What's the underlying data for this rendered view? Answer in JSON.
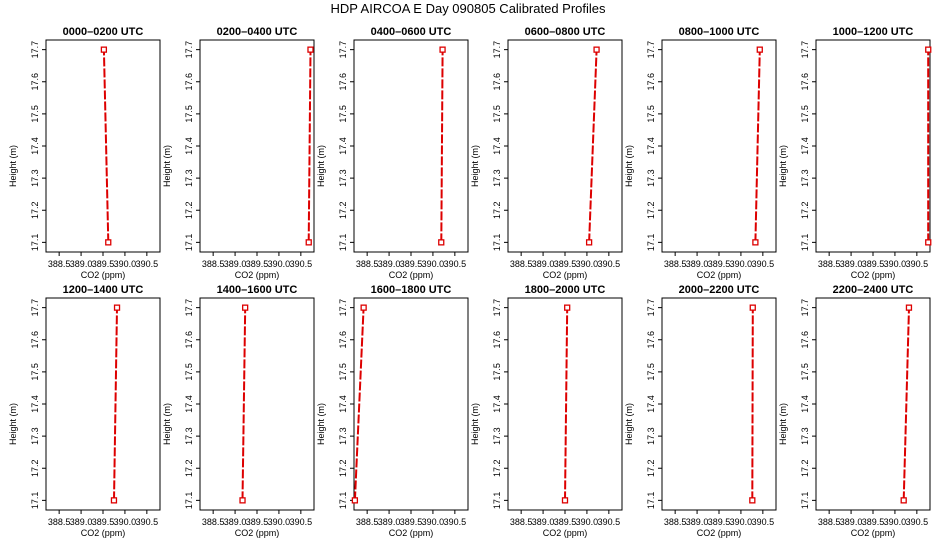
{
  "title": "HDP AIRCOA E  Day 090805  Calibrated Profiles",
  "chart_data": [
    {
      "type": "line",
      "title": "0000–0200 UTC",
      "xlabel": "CO2 (ppm)",
      "ylabel": "Height (m)",
      "xlim": [
        388.2,
        390.8
      ],
      "ylim": [
        17.07,
        17.73
      ],
      "x_ticks": [
        "388.5",
        "389.0",
        "389.5",
        "390.0",
        "390.5"
      ],
      "y_ticks": [
        "17.1",
        "17.2",
        "17.3",
        "17.4",
        "17.5",
        "17.6",
        "17.7"
      ],
      "series": [
        {
          "x": [
            389.62,
            389.52
          ],
          "y": [
            17.1,
            17.7
          ]
        }
      ]
    },
    {
      "type": "line",
      "title": "0200–0400 UTC",
      "xlabel": "CO2 (ppm)",
      "ylabel": "Height (m)",
      "xlim": [
        388.2,
        390.8
      ],
      "ylim": [
        17.07,
        17.73
      ],
      "x_ticks": [
        "388.5",
        "389.0",
        "389.5",
        "390.0",
        "390.5"
      ],
      "y_ticks": [
        "17.1",
        "17.2",
        "17.3",
        "17.4",
        "17.5",
        "17.6",
        "17.7"
      ],
      "series": [
        {
          "x": [
            390.68,
            390.72
          ],
          "y": [
            17.1,
            17.7
          ]
        }
      ]
    },
    {
      "type": "line",
      "title": "0400–0600 UTC",
      "xlabel": "CO2 (ppm)",
      "ylabel": "Height (m)",
      "xlim": [
        388.2,
        390.8
      ],
      "ylim": [
        17.07,
        17.73
      ],
      "x_ticks": [
        "388.5",
        "389.0",
        "389.5",
        "390.0",
        "390.5"
      ],
      "y_ticks": [
        "17.1",
        "17.2",
        "17.3",
        "17.4",
        "17.5",
        "17.6",
        "17.7"
      ],
      "series": [
        {
          "x": [
            390.19,
            390.22
          ],
          "y": [
            17.1,
            17.7
          ]
        }
      ]
    },
    {
      "type": "line",
      "title": "0600–0800 UTC",
      "xlabel": "CO2 (ppm)",
      "ylabel": "Height (m)",
      "xlim": [
        388.2,
        390.8
      ],
      "ylim": [
        17.07,
        17.73
      ],
      "x_ticks": [
        "388.5",
        "389.0",
        "389.5",
        "390.0",
        "390.5"
      ],
      "y_ticks": [
        "17.1",
        "17.2",
        "17.3",
        "17.4",
        "17.5",
        "17.6",
        "17.7"
      ],
      "series": [
        {
          "x": [
            390.05,
            390.22
          ],
          "y": [
            17.1,
            17.7
          ]
        }
      ]
    },
    {
      "type": "line",
      "title": "0800–1000 UTC",
      "xlabel": "CO2 (ppm)",
      "ylabel": "Height (m)",
      "xlim": [
        388.2,
        390.8
      ],
      "ylim": [
        17.07,
        17.73
      ],
      "x_ticks": [
        "388.5",
        "389.0",
        "389.5",
        "390.0",
        "390.5"
      ],
      "y_ticks": [
        "17.1",
        "17.2",
        "17.3",
        "17.4",
        "17.5",
        "17.6",
        "17.7"
      ],
      "series": [
        {
          "x": [
            390.33,
            390.43
          ],
          "y": [
            17.1,
            17.7
          ]
        }
      ]
    },
    {
      "type": "line",
      "title": "1000–1200 UTC",
      "xlabel": "CO2 (ppm)",
      "ylabel": "Height (m)",
      "xlim": [
        388.2,
        390.8
      ],
      "ylim": [
        17.07,
        17.73
      ],
      "x_ticks": [
        "388.5",
        "389.0",
        "389.5",
        "390.0",
        "390.5"
      ],
      "y_ticks": [
        "17.1",
        "17.2",
        "17.3",
        "17.4",
        "17.5",
        "17.6",
        "17.7"
      ],
      "series": [
        {
          "x": [
            390.76,
            390.76
          ],
          "y": [
            17.1,
            17.7
          ]
        }
      ]
    },
    {
      "type": "line",
      "title": "1200–1400 UTC",
      "xlabel": "CO2 (ppm)",
      "ylabel": "Height (m)",
      "xlim": [
        388.2,
        390.8
      ],
      "ylim": [
        17.07,
        17.73
      ],
      "x_ticks": [
        "388.5",
        "389.0",
        "389.5",
        "390.0",
        "390.5"
      ],
      "y_ticks": [
        "17.1",
        "17.2",
        "17.3",
        "17.4",
        "17.5",
        "17.6",
        "17.7"
      ],
      "series": [
        {
          "x": [
            389.75,
            389.82
          ],
          "y": [
            17.1,
            17.7
          ]
        }
      ]
    },
    {
      "type": "line",
      "title": "1400–1600 UTC",
      "xlabel": "CO2 (ppm)",
      "ylabel": "Height (m)",
      "xlim": [
        388.2,
        390.8
      ],
      "ylim": [
        17.07,
        17.73
      ],
      "x_ticks": [
        "388.5",
        "389.0",
        "389.5",
        "390.0",
        "390.5"
      ],
      "y_ticks": [
        "17.1",
        "17.2",
        "17.3",
        "17.4",
        "17.5",
        "17.6",
        "17.7"
      ],
      "series": [
        {
          "x": [
            389.17,
            389.23
          ],
          "y": [
            17.1,
            17.7
          ]
        }
      ]
    },
    {
      "type": "line",
      "title": "1600–1800 UTC",
      "xlabel": "CO2 (ppm)",
      "ylabel": "Height (m)",
      "xlim": [
        388.2,
        390.8
      ],
      "ylim": [
        17.07,
        17.73
      ],
      "x_ticks": [
        "388.5",
        "389.0",
        "389.5",
        "390.0",
        "390.5"
      ],
      "y_ticks": [
        "17.1",
        "17.2",
        "17.3",
        "17.4",
        "17.5",
        "17.6",
        "17.7"
      ],
      "series": [
        {
          "x": [
            388.22,
            388.42
          ],
          "y": [
            17.1,
            17.7
          ]
        }
      ]
    },
    {
      "type": "line",
      "title": "1800–2000 UTC",
      "xlabel": "CO2 (ppm)",
      "ylabel": "Height (m)",
      "xlim": [
        388.2,
        390.8
      ],
      "ylim": [
        17.07,
        17.73
      ],
      "x_ticks": [
        "388.5",
        "389.0",
        "389.5",
        "390.0",
        "390.5"
      ],
      "y_ticks": [
        "17.1",
        "17.2",
        "17.3",
        "17.4",
        "17.5",
        "17.6",
        "17.7"
      ],
      "series": [
        {
          "x": [
            389.5,
            389.55
          ],
          "y": [
            17.1,
            17.7
          ]
        }
      ]
    },
    {
      "type": "line",
      "title": "2000–2200 UTC",
      "xlabel": "CO2 (ppm)",
      "ylabel": "Height (m)",
      "xlim": [
        388.2,
        390.8
      ],
      "ylim": [
        17.07,
        17.73
      ],
      "x_ticks": [
        "388.5",
        "389.0",
        "389.5",
        "390.0",
        "390.5"
      ],
      "y_ticks": [
        "17.1",
        "17.2",
        "17.3",
        "17.4",
        "17.5",
        "17.6",
        "17.7"
      ],
      "series": [
        {
          "x": [
            390.26,
            390.27
          ],
          "y": [
            17.1,
            17.7
          ]
        }
      ]
    },
    {
      "type": "line",
      "title": "2200–2400 UTC",
      "xlabel": "CO2 (ppm)",
      "ylabel": "Height (m)",
      "xlim": [
        388.2,
        390.8
      ],
      "ylim": [
        17.07,
        17.73
      ],
      "x_ticks": [
        "388.5",
        "389.0",
        "389.5",
        "390.0",
        "390.5"
      ],
      "y_ticks": [
        "17.1",
        "17.2",
        "17.3",
        "17.4",
        "17.5",
        "17.6",
        "17.7"
      ],
      "series": [
        {
          "x": [
            390.2,
            390.32
          ],
          "y": [
            17.1,
            17.7
          ]
        }
      ]
    }
  ],
  "colors": {
    "series": "#dd0000",
    "axis": "#000000",
    "background": "#ffffff"
  }
}
